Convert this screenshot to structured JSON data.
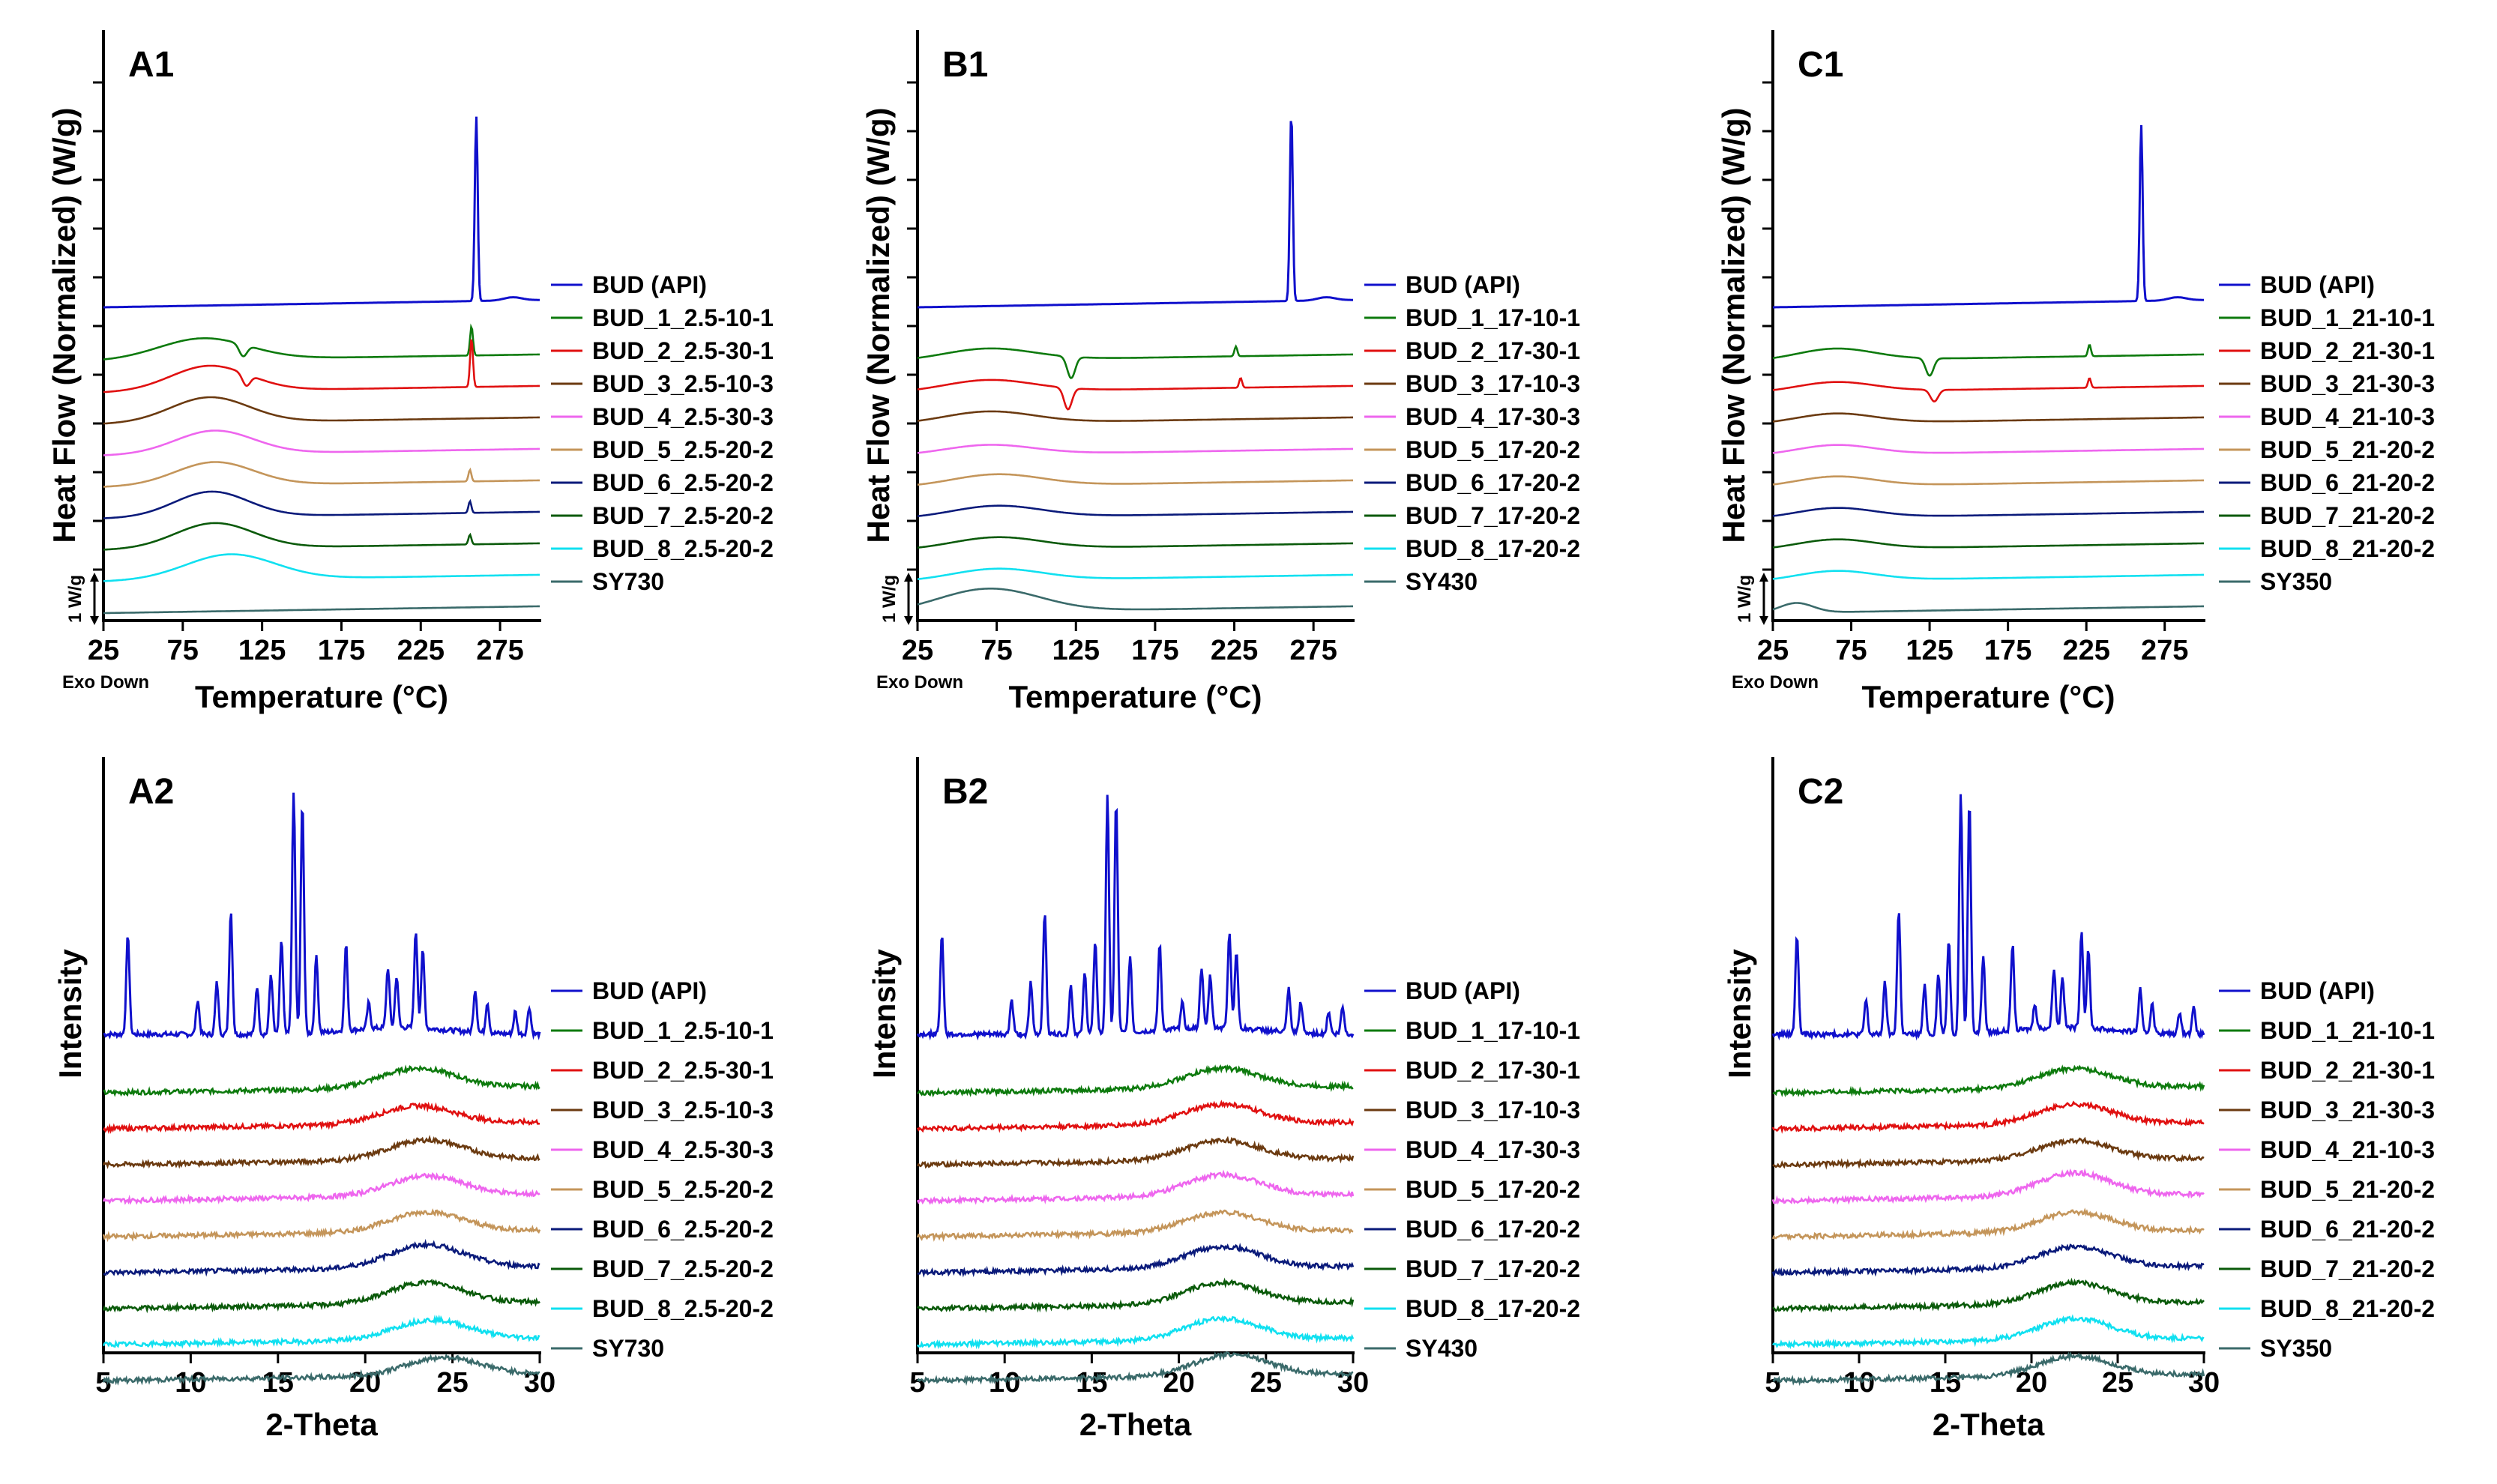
{
  "colors": {
    "BUD (API)": "#1010cc",
    "_1": "#0d7a0d",
    "_2": "#e01010",
    "_3": "#6b3a10",
    "_4": "#ee66ee",
    "_5": "#c4955a",
    "_6": "#0a1a7a",
    "_7": "#0a5a0a",
    "_8": "#10e0f0",
    "SY": "#3a6a6a"
  },
  "chart_data": [
    {
      "id": "A1",
      "type": "line",
      "title": "A1",
      "xlabel": "Temperature (°C)",
      "ylabel": "Heat Flow (Normalized) (W/g)",
      "xlim": [
        25,
        300
      ],
      "xticks": [
        25,
        75,
        125,
        175,
        225,
        275
      ],
      "scale_bar": "1 W/g",
      "exo_note": "Exo Down",
      "series": [
        {
          "name": "BUD (API)",
          "peaks": [
            [
              260,
              8.8
            ]
          ]
        },
        {
          "name": "BUD_1_2.5-10-1",
          "humps": [
            [
              88,
              1.1,
              40
            ]
          ],
          "dips": [
            [
              113,
              0.6
            ]
          ],
          "peaks": [
            [
              257,
              1.5
            ]
          ]
        },
        {
          "name": "BUD_2_2.5-30-1",
          "humps": [
            [
              92,
              1.3,
              35
            ]
          ],
          "dips": [
            [
              115,
              0.6
            ]
          ],
          "peaks": [
            [
              257,
              2.5
            ]
          ]
        },
        {
          "name": "BUD_3_2.5-10-3",
          "humps": [
            [
              92,
              1.3,
              35
            ]
          ]
        },
        {
          "name": "BUD_4_2.5-30-3",
          "humps": [
            [
              95,
              1.2,
              35
            ]
          ]
        },
        {
          "name": "BUD_5_2.5-20-2",
          "humps": [
            [
              95,
              1.2,
              35
            ]
          ],
          "peaks": [
            [
              256,
              0.6
            ]
          ]
        },
        {
          "name": "BUD_6_2.5-20-2",
          "humps": [
            [
              93,
              1.3,
              33
            ]
          ],
          "peaks": [
            [
              256,
              0.6
            ]
          ]
        },
        {
          "name": "BUD_7_2.5-20-2",
          "humps": [
            [
              95,
              1.3,
              35
            ]
          ],
          "peaks": [
            [
              256,
              0.5
            ]
          ]
        },
        {
          "name": "BUD_8_2.5-20-2",
          "humps": [
            [
              105,
              1.3,
              40
            ]
          ]
        },
        {
          "name": "SY730"
        }
      ]
    },
    {
      "id": "B1",
      "type": "line",
      "title": "B1",
      "xlabel": "Temperature (°C)",
      "ylabel": "Heat Flow (Normalized) (W/g)",
      "xlim": [
        25,
        300
      ],
      "xticks": [
        25,
        75,
        125,
        175,
        225,
        275
      ],
      "scale_bar": "1 W/g",
      "exo_note": "Exo Down",
      "series": [
        {
          "name": "BUD (API)",
          "peaks": [
            [
              261,
              9.0
            ]
          ]
        },
        {
          "name": "BUD_1_17-10-1",
          "humps": [
            [
              70,
              0.6,
              40
            ]
          ],
          "dips": [
            [
              122,
              1.1
            ]
          ],
          "peaks": [
            [
              226,
              0.5
            ]
          ]
        },
        {
          "name": "BUD_2_17-30-1",
          "humps": [
            [
              70,
              0.6,
              40
            ]
          ],
          "dips": [
            [
              120,
              1.1
            ]
          ],
          "peaks": [
            [
              229,
              0.5
            ]
          ]
        },
        {
          "name": "BUD_3_17-10-3",
          "humps": [
            [
              70,
              0.6,
              40
            ]
          ]
        },
        {
          "name": "BUD_4_17-30-3",
          "humps": [
            [
              70,
              0.5,
              40
            ]
          ]
        },
        {
          "name": "BUD_5_17-20-2",
          "humps": [
            [
              75,
              0.6,
              40
            ]
          ]
        },
        {
          "name": "BUD_6_17-20-2",
          "humps": [
            [
              75,
              0.6,
              40
            ]
          ]
        },
        {
          "name": "BUD_7_17-20-2",
          "humps": [
            [
              75,
              0.6,
              40
            ]
          ]
        },
        {
          "name": "BUD_8_17-20-2",
          "humps": [
            [
              75,
              0.6,
              40
            ]
          ]
        },
        {
          "name": "SY430",
          "humps": [
            [
              70,
              1.2,
              45
            ]
          ]
        }
      ]
    },
    {
      "id": "C1",
      "type": "line",
      "title": "C1",
      "xlabel": "Temperature (°C)",
      "ylabel": "Heat Flow (Normalized) (W/g)",
      "xlim": [
        25,
        300
      ],
      "xticks": [
        25,
        75,
        125,
        175,
        225,
        275
      ],
      "scale_bar": "1 W/g",
      "exo_note": "Exo Down",
      "series": [
        {
          "name": "BUD (API)",
          "peaks": [
            [
              260,
              8.4
            ]
          ]
        },
        {
          "name": "BUD_1_21-10-1",
          "humps": [
            [
              65,
              0.6,
              35
            ]
          ],
          "dips": [
            [
              125,
              0.9
            ]
          ],
          "peaks": [
            [
              227,
              0.6
            ]
          ]
        },
        {
          "name": "BUD_2_21-30-1",
          "humps": [
            [
              65,
              0.5,
              35
            ]
          ],
          "dips": [
            [
              128,
              0.6
            ]
          ],
          "peaks": [
            [
              227,
              0.5
            ]
          ]
        },
        {
          "name": "BUD_3_21-30-3",
          "humps": [
            [
              65,
              0.5,
              35
            ]
          ]
        },
        {
          "name": "BUD_4_21-10-3",
          "humps": [
            [
              65,
              0.5,
              35
            ]
          ]
        },
        {
          "name": "BUD_5_21-20-2",
          "humps": [
            [
              65,
              0.5,
              35
            ]
          ]
        },
        {
          "name": "BUD_6_21-20-2",
          "humps": [
            [
              65,
              0.5,
              35
            ]
          ]
        },
        {
          "name": "BUD_7_21-20-2",
          "humps": [
            [
              65,
              0.5,
              35
            ]
          ]
        },
        {
          "name": "BUD_8_21-20-2",
          "humps": [
            [
              65,
              0.5,
              35
            ]
          ]
        },
        {
          "name": "SY350",
          "humps": [
            [
              40,
              0.5,
              15
            ]
          ]
        }
      ]
    },
    {
      "id": "A2",
      "type": "line",
      "title": "A2",
      "xlabel": "2-Theta",
      "ylabel": "Intensity",
      "xlim": [
        5,
        30
      ],
      "xticks": [
        5,
        10,
        15,
        20,
        25,
        30
      ],
      "api_peaks": [
        [
          6.4,
          5.8
        ],
        [
          10.4,
          2.0
        ],
        [
          11.5,
          3.0
        ],
        [
          12.3,
          7.2
        ],
        [
          13.8,
          2.8
        ],
        [
          14.6,
          3.5
        ],
        [
          15.2,
          5.5
        ],
        [
          15.9,
          14.0
        ],
        [
          16.4,
          13.5
        ],
        [
          17.2,
          4.5
        ],
        [
          18.9,
          5.0
        ],
        [
          20.2,
          1.5
        ],
        [
          21.3,
          3.5
        ],
        [
          21.8,
          3.0
        ],
        [
          22.9,
          5.6
        ],
        [
          23.3,
          4.5
        ],
        [
          26.3,
          2.5
        ],
        [
          27.0,
          1.8
        ],
        [
          28.6,
          1.3
        ],
        [
          29.4,
          1.6
        ]
      ],
      "series": [
        {
          "name": "BUD (API)"
        },
        {
          "name": "BUD_1_2.5-10-1",
          "halo": [
            [
              23.0,
              1.2,
              3.0
            ]
          ]
        },
        {
          "name": "BUD_2_2.5-30-1",
          "halo": [
            [
              23.0,
              1.1,
              3.0
            ]
          ]
        },
        {
          "name": "BUD_3_2.5-10-3",
          "halo": [
            [
              23.5,
              1.2,
              3.0
            ]
          ]
        },
        {
          "name": "BUD_4_2.5-30-3",
          "halo": [
            [
              23.5,
              1.2,
              3.0
            ]
          ]
        },
        {
          "name": "BUD_5_2.5-20-2",
          "halo": [
            [
              23.5,
              1.2,
              3.0
            ]
          ]
        },
        {
          "name": "BUD_6_2.5-20-2",
          "halo": [
            [
              23.5,
              1.4,
              3.0
            ]
          ]
        },
        {
          "name": "BUD_7_2.5-20-2",
          "halo": [
            [
              23.5,
              1.3,
              3.0
            ]
          ]
        },
        {
          "name": "BUD_8_2.5-20-2",
          "halo": [
            [
              23.8,
              1.2,
              3.0
            ]
          ]
        },
        {
          "name": "SY730",
          "halo": [
            [
              24.5,
              1.1,
              3.0
            ]
          ]
        }
      ]
    },
    {
      "id": "B2",
      "type": "line",
      "title": "B2",
      "xlabel": "2-Theta",
      "ylabel": "Intensity",
      "xlim": [
        5,
        30
      ],
      "xticks": [
        5,
        10,
        15,
        20,
        25,
        30
      ],
      "api_peaks": [
        [
          6.4,
          5.8
        ],
        [
          10.4,
          2.0
        ],
        [
          11.5,
          3.0
        ],
        [
          12.3,
          7.2
        ],
        [
          13.8,
          2.8
        ],
        [
          14.6,
          3.5
        ],
        [
          15.2,
          5.5
        ],
        [
          15.9,
          14.0
        ],
        [
          16.4,
          13.5
        ],
        [
          17.2,
          4.5
        ],
        [
          18.9,
          5.0
        ],
        [
          20.2,
          1.5
        ],
        [
          21.3,
          3.5
        ],
        [
          21.8,
          3.0
        ],
        [
          22.9,
          5.6
        ],
        [
          23.3,
          4.5
        ],
        [
          26.3,
          2.5
        ],
        [
          27.0,
          1.8
        ],
        [
          28.6,
          1.3
        ],
        [
          29.4,
          1.6
        ]
      ],
      "series": [
        {
          "name": "BUD (API)"
        },
        {
          "name": "BUD_1_17-10-1",
          "halo": [
            [
              22.5,
              1.2,
              3.0
            ]
          ]
        },
        {
          "name": "BUD_2_17-30-1",
          "halo": [
            [
              22.5,
              1.2,
              3.0
            ]
          ]
        },
        {
          "name": "BUD_3_17-10-3",
          "halo": [
            [
              22.5,
              1.2,
              3.0
            ]
          ]
        },
        {
          "name": "BUD_4_17-30-3",
          "halo": [
            [
              22.5,
              1.3,
              3.0
            ]
          ]
        },
        {
          "name": "BUD_5_17-20-2",
          "halo": [
            [
              22.5,
              1.2,
              3.0
            ]
          ]
        },
        {
          "name": "BUD_6_17-20-2",
          "halo": [
            [
              22.5,
              1.3,
              3.0
            ]
          ]
        },
        {
          "name": "BUD_7_17-20-2",
          "halo": [
            [
              22.5,
              1.3,
              3.0
            ]
          ]
        },
        {
          "name": "BUD_8_17-20-2",
          "halo": [
            [
              22.5,
              1.3,
              3.0
            ]
          ]
        },
        {
          "name": "SY430",
          "halo": [
            [
              23.0,
              1.3,
              3.0
            ]
          ]
        }
      ]
    },
    {
      "id": "C2",
      "type": "line",
      "title": "C2",
      "xlabel": "2-Theta",
      "ylabel": "Intensity",
      "xlim": [
        5,
        30
      ],
      "xticks": [
        5,
        10,
        15,
        20,
        25,
        30
      ],
      "api_peaks": [
        [
          6.4,
          5.8
        ],
        [
          10.4,
          2.0
        ],
        [
          11.5,
          3.0
        ],
        [
          12.3,
          7.2
        ],
        [
          13.8,
          2.8
        ],
        [
          14.6,
          3.5
        ],
        [
          15.2,
          5.5
        ],
        [
          15.9,
          14.0
        ],
        [
          16.4,
          13.5
        ],
        [
          17.2,
          4.5
        ],
        [
          18.9,
          5.0
        ],
        [
          20.2,
          1.5
        ],
        [
          21.3,
          3.5
        ],
        [
          21.8,
          3.0
        ],
        [
          22.9,
          5.6
        ],
        [
          23.3,
          4.5
        ],
        [
          26.3,
          2.5
        ],
        [
          27.0,
          1.8
        ],
        [
          28.6,
          1.3
        ],
        [
          29.4,
          1.6
        ]
      ],
      "series": [
        {
          "name": "BUD (API)"
        },
        {
          "name": "BUD_1_21-10-1",
          "halo": [
            [
              22.5,
              1.2,
              3.0
            ]
          ]
        },
        {
          "name": "BUD_2_21-30-1",
          "halo": [
            [
              22.5,
              1.2,
              3.0
            ]
          ]
        },
        {
          "name": "BUD_3_21-30-3",
          "halo": [
            [
              22.5,
              1.2,
              3.0
            ]
          ]
        },
        {
          "name": "BUD_4_21-10-3",
          "halo": [
            [
              22.5,
              1.4,
              3.0
            ]
          ]
        },
        {
          "name": "BUD_5_21-20-2",
          "halo": [
            [
              22.5,
              1.2,
              3.0
            ]
          ]
        },
        {
          "name": "BUD_6_21-20-2",
          "halo": [
            [
              22.5,
              1.3,
              3.0
            ]
          ]
        },
        {
          "name": "BUD_7_21-20-2",
          "halo": [
            [
              22.5,
              1.3,
              3.0
            ]
          ]
        },
        {
          "name": "BUD_8_21-20-2",
          "halo": [
            [
              22.5,
              1.3,
              3.0
            ]
          ]
        },
        {
          "name": "SY350",
          "halo": [
            [
              22.5,
              1.2,
              3.0
            ]
          ]
        }
      ]
    }
  ]
}
